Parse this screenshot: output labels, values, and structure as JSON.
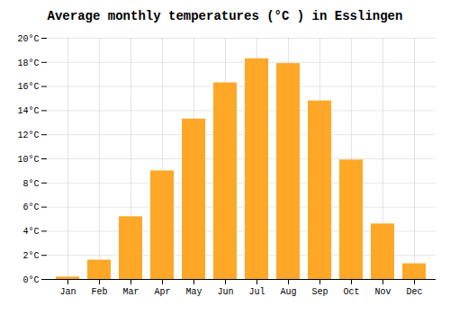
{
  "chart_data": {
    "type": "bar",
    "title": "Average monthly temperatures (°C ) in Esslingen",
    "categories": [
      "Jan",
      "Feb",
      "Mar",
      "Apr",
      "May",
      "Jun",
      "Jul",
      "Aug",
      "Sep",
      "Oct",
      "Nov",
      "Dec"
    ],
    "values": [
      0.2,
      1.6,
      5.2,
      9.0,
      13.3,
      16.3,
      18.3,
      17.9,
      14.8,
      9.9,
      4.6,
      1.3
    ],
    "color": "#FFA726",
    "ylim": [
      0,
      20
    ],
    "yticks": [
      {
        "value": 0,
        "label": "0°C"
      },
      {
        "value": 2,
        "label": "2°C"
      },
      {
        "value": 4,
        "label": "4°C"
      },
      {
        "value": 6,
        "label": "6°C"
      },
      {
        "value": 8,
        "label": "8°C"
      },
      {
        "value": 10,
        "label": "10°C"
      },
      {
        "value": 12,
        "label": "12°C"
      },
      {
        "value": 14,
        "label": "14°C"
      },
      {
        "value": 16,
        "label": "16°C"
      },
      {
        "value": 18,
        "label": "18°C"
      },
      {
        "value": 20,
        "label": "20°C"
      }
    ],
    "grid": true
  }
}
